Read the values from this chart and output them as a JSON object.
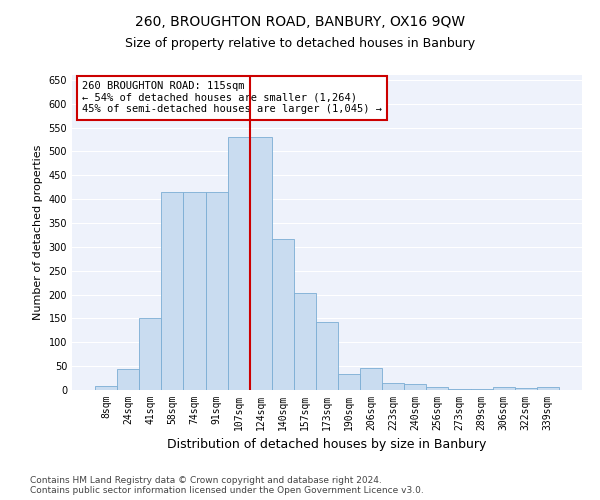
{
  "title1": "260, BROUGHTON ROAD, BANBURY, OX16 9QW",
  "title2": "Size of property relative to detached houses in Banbury",
  "xlabel": "Distribution of detached houses by size in Banbury",
  "ylabel": "Number of detached properties",
  "categories": [
    "8sqm",
    "24sqm",
    "41sqm",
    "58sqm",
    "74sqm",
    "91sqm",
    "107sqm",
    "124sqm",
    "140sqm",
    "157sqm",
    "173sqm",
    "190sqm",
    "206sqm",
    "223sqm",
    "240sqm",
    "256sqm",
    "273sqm",
    "289sqm",
    "306sqm",
    "322sqm",
    "339sqm"
  ],
  "values": [
    8,
    44,
    150,
    415,
    415,
    415,
    530,
    530,
    317,
    203,
    143,
    33,
    47,
    14,
    12,
    7,
    2,
    2,
    7,
    5,
    7
  ],
  "bar_color": "#c9dcf0",
  "bar_edge_color": "#7badd4",
  "vline_pos": 7.5,
  "vline_color": "#cc0000",
  "annotation_text": "260 BROUGHTON ROAD: 115sqm\n← 54% of detached houses are smaller (1,264)\n45% of semi-detached houses are larger (1,045) →",
  "annotation_box_color": "#ffffff",
  "annotation_box_edge": "#cc0000",
  "ylim": [
    0,
    660
  ],
  "yticks": [
    0,
    50,
    100,
    150,
    200,
    250,
    300,
    350,
    400,
    450,
    500,
    550,
    600,
    650
  ],
  "bg_color": "#eef2fb",
  "grid_color": "#ffffff",
  "footer1": "Contains HM Land Registry data © Crown copyright and database right 2024.",
  "footer2": "Contains public sector information licensed under the Open Government Licence v3.0.",
  "title1_fontsize": 10,
  "title2_fontsize": 9,
  "xlabel_fontsize": 9,
  "ylabel_fontsize": 8,
  "tick_fontsize": 7,
  "footer_fontsize": 6.5,
  "ann_fontsize": 7.5
}
